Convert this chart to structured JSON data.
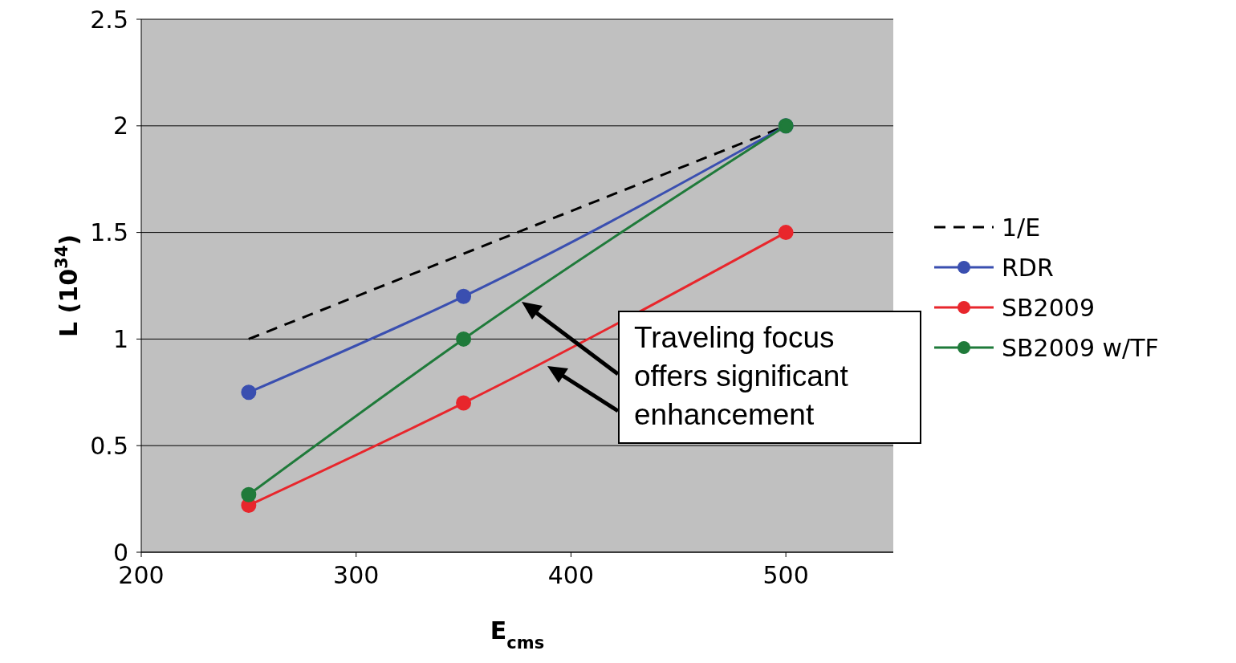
{
  "chart_data": {
    "type": "line",
    "xlabel": "E$_{cms}$",
    "ylabel": "L (10$^{34}$)",
    "xlim": [
      200,
      550
    ],
    "xticks": [
      200,
      300,
      400,
      500
    ],
    "ylim": [
      0,
      2.5
    ],
    "yticks": [
      0,
      0.5,
      1,
      1.5,
      2,
      2.5
    ],
    "grid": "y",
    "legend": "right",
    "series": [
      {
        "name": "1/E",
        "color": "#000000",
        "x": [
          250,
          500
        ],
        "values": [
          1.0,
          2.0
        ],
        "line_style": "dashed",
        "marker": "none"
      },
      {
        "name": "RDR",
        "color": "#3a4fb0",
        "x": [
          250,
          350,
          500
        ],
        "values": [
          0.75,
          1.2,
          2.0
        ],
        "line_style": "solid",
        "marker": "circle"
      },
      {
        "name": "SB2009",
        "color": "#e8262c",
        "x": [
          250,
          350,
          500
        ],
        "values": [
          0.22,
          0.7,
          1.5
        ],
        "line_style": "solid",
        "marker": "circle"
      },
      {
        "name": "SB2009 w/TF",
        "color": "#1f7a3a",
        "x": [
          250,
          350,
          500
        ],
        "values": [
          0.27,
          1.0,
          2.0
        ],
        "line_style": "solid",
        "marker": "circle"
      }
    ],
    "annotations": [
      "Traveling focus offers significant enhancement"
    ]
  }
}
